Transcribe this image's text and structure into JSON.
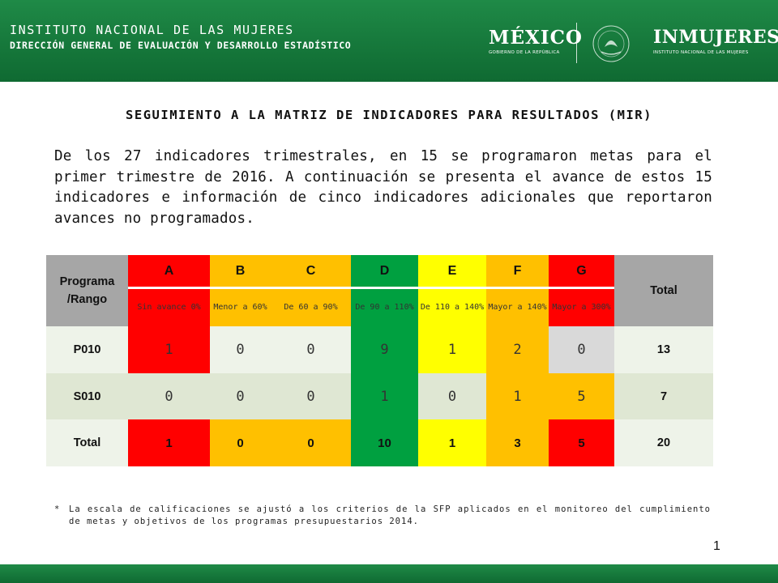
{
  "header": {
    "institution": "INSTITUTO NACIONAL DE LAS MUJERES",
    "direction": "DIRECCIÓN GENERAL DE EVALUACIÓN Y DESARROLLO ESTADÍSTICO",
    "logo_mexico": "MÉXICO",
    "logo_mexico_sub": "GOBIERNO DE LA REPÚBLICA",
    "logo_inmujeres": "INMUJERES",
    "logo_inmujeres_sub": "INSTITUTO NACIONAL DE LAS MUJERES"
  },
  "title": "SEGUIMIENTO A LA MATRIZ DE INDICADORES PARA RESULTADOS (MIR)",
  "paragraph": "De los 27 indicadores trimestrales, en 15 se programaron metas para el primer trimestre de 2016. A continuación se presenta el avance de estos 15 indicadores e información de cinco indicadores adicionales que reportaron avances no programados.",
  "table": {
    "corner": "Programa /Rango",
    "total_header": "Total",
    "columns": [
      {
        "letter": "A",
        "range": "Sin avance 0%",
        "color": "#ff0000"
      },
      {
        "letter": "B",
        "range": "Menor a 60%",
        "color": "#ffc000"
      },
      {
        "letter": "C",
        "range": "De 60 a 90%",
        "color": "#ffc000"
      },
      {
        "letter": "D",
        "range": "De 90 a 110%",
        "color": "#00a040"
      },
      {
        "letter": "E",
        "range": "De 110 a 140%",
        "color": "#ffff00"
      },
      {
        "letter": "F",
        "range": "Mayor a 140%",
        "color": "#ffc000"
      },
      {
        "letter": "G",
        "range": "Mayor a 300%",
        "color": "#ff0000"
      }
    ],
    "rows": [
      {
        "label": "P010",
        "values": [
          "1",
          "0",
          "0",
          "9",
          "1",
          "2",
          "0"
        ],
        "total": "13"
      },
      {
        "label": "S010",
        "values": [
          "0",
          "0",
          "0",
          "1",
          "0",
          "1",
          "5"
        ],
        "total": "7"
      },
      {
        "label": "Total",
        "values": [
          "1",
          "0",
          "0",
          "10",
          "1",
          "3",
          "5"
        ],
        "total": "20"
      }
    ]
  },
  "footnote": {
    "marker": "*",
    "text": "La escala de calificaciones se ajustó a los criterios de la SFP aplicados en el monitoreo del cumplimiento de metas y objetivos de los programas  presupuestarios 2014."
  },
  "page_number": "1"
}
